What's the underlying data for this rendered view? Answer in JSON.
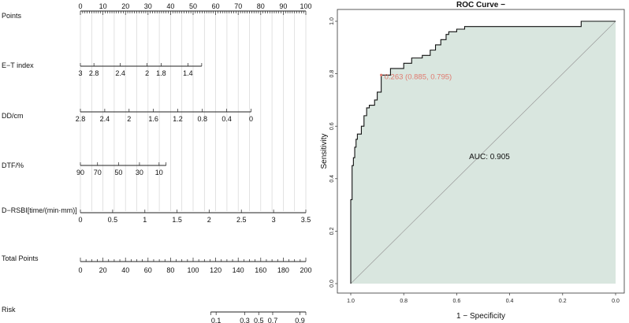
{
  "chart_data": [
    {
      "type": "nomogram",
      "rows": [
        {
          "label": "Points",
          "ticks": [
            {
              "v": 0,
              "t": "0"
            },
            {
              "v": 10,
              "t": "10"
            },
            {
              "v": 20,
              "t": "20"
            },
            {
              "v": 30,
              "t": "30"
            },
            {
              "v": 40,
              "t": "40"
            },
            {
              "v": 50,
              "t": "50"
            },
            {
              "v": 60,
              "t": "60"
            },
            {
              "v": 70,
              "t": "70"
            },
            {
              "v": 80,
              "t": "80"
            },
            {
              "v": 90,
              "t": "90"
            },
            {
              "v": 100,
              "t": "100"
            }
          ]
        },
        {
          "label": "E−T index",
          "ticks": [
            {
              "v": 0,
              "t": "3"
            },
            {
              "v": 6,
              "t": "2.8"
            },
            {
              "v": 17.7,
              "t": "2.4"
            },
            {
              "v": 29.6,
              "t": "2"
            },
            {
              "v": 35.8,
              "t": "1.8"
            },
            {
              "v": 47.7,
              "t": "1.4"
            },
            {
              "v": 53.8,
              "t": ""
            }
          ]
        },
        {
          "label": "DD/cm",
          "ticks": [
            {
              "v": 0,
              "t": "2.8"
            },
            {
              "v": 10.8,
              "t": "2.4"
            },
            {
              "v": 21.6,
              "t": "2"
            },
            {
              "v": 32.4,
              "t": "1.6"
            },
            {
              "v": 43.2,
              "t": "1.2"
            },
            {
              "v": 54.1,
              "t": "0.8"
            },
            {
              "v": 64.9,
              "t": "0.4"
            },
            {
              "v": 75.7,
              "t": "0"
            }
          ]
        },
        {
          "label": "DTF/%",
          "ticks": [
            {
              "v": 0,
              "t": "90"
            },
            {
              "v": 7.6,
              "t": "70"
            },
            {
              "v": 16.9,
              "t": "50"
            },
            {
              "v": 26.2,
              "t": "30"
            },
            {
              "v": 34.9,
              "t": "10"
            },
            {
              "v": 38,
              "t": ""
            }
          ]
        },
        {
          "label": "D−RSBI[time/(min·mm)]",
          "ticks": [
            {
              "v": 0,
              "t": "0"
            },
            {
              "v": 14.3,
              "t": "0.5"
            },
            {
              "v": 28.6,
              "t": "1"
            },
            {
              "v": 42.9,
              "t": "1.5"
            },
            {
              "v": 57.1,
              "t": "2"
            },
            {
              "v": 71.4,
              "t": "2.5"
            },
            {
              "v": 85.7,
              "t": "3"
            },
            {
              "v": 100,
              "t": "3.5"
            }
          ]
        },
        {
          "label": "Total Points",
          "ticks": [
            {
              "v": 0,
              "t": "0"
            },
            {
              "v": 20,
              "t": "20"
            },
            {
              "v": 40,
              "t": "40"
            },
            {
              "v": 60,
              "t": "60"
            },
            {
              "v": 80,
              "t": "80"
            },
            {
              "v": 100,
              "t": "100"
            },
            {
              "v": 120,
              "t": "120"
            },
            {
              "v": 140,
              "t": "140"
            },
            {
              "v": 160,
              "t": "160"
            },
            {
              "v": 180,
              "t": "180"
            },
            {
              "v": 200,
              "t": "200"
            }
          ]
        },
        {
          "label": "Risk",
          "ticks": [
            {
              "v": 60.2,
              "t": "0.1"
            },
            {
              "v": 72.9,
              "t": "0.3"
            },
            {
              "v": 79.1,
              "t": "0.5"
            },
            {
              "v": 85.3,
              "t": "0.7"
            },
            {
              "v": 97.4,
              "t": "0.9"
            }
          ]
        }
      ]
    },
    {
      "type": "line",
      "title": "ROC Curve −",
      "xlabel": "1 − Specificity",
      "ylabel": "Sensitivity",
      "xlim": [
        1.0,
        0.0
      ],
      "ylim": [
        0.0,
        1.0
      ],
      "xticks": [
        "1.0",
        "0.8",
        "0.6",
        "0.4",
        "0.2",
        "0.0"
      ],
      "yticks": [
        "0.0",
        "0.2",
        "0.4",
        "0.6",
        "0.8",
        "1.0"
      ],
      "auc_label": "AUC: 0.905",
      "threshold_label": "0.263 (0.885, 0.795)",
      "threshold_point": {
        "specificity": 0.885,
        "sensitivity": 0.795
      },
      "series": [
        {
          "name": "ROC",
          "specificity": [
            1.0,
            1.0,
            0.995,
            0.995,
            0.99,
            0.99,
            0.985,
            0.985,
            0.98,
            0.98,
            0.975,
            0.975,
            0.96,
            0.96,
            0.95,
            0.95,
            0.94,
            0.94,
            0.93,
            0.93,
            0.91,
            0.91,
            0.9,
            0.9,
            0.885,
            0.885,
            0.85,
            0.85,
            0.8,
            0.8,
            0.77,
            0.77,
            0.73,
            0.73,
            0.7,
            0.7,
            0.68,
            0.68,
            0.66,
            0.66,
            0.64,
            0.64,
            0.63,
            0.63,
            0.6,
            0.6,
            0.57,
            0.57,
            0.13,
            0.13,
            0.0
          ],
          "sensitivity": [
            0.0,
            0.32,
            0.32,
            0.45,
            0.45,
            0.48,
            0.48,
            0.52,
            0.52,
            0.55,
            0.55,
            0.57,
            0.57,
            0.6,
            0.6,
            0.64,
            0.64,
            0.67,
            0.67,
            0.68,
            0.68,
            0.7,
            0.7,
            0.73,
            0.73,
            0.795,
            0.795,
            0.82,
            0.82,
            0.84,
            0.84,
            0.86,
            0.86,
            0.87,
            0.87,
            0.89,
            0.89,
            0.91,
            0.91,
            0.93,
            0.93,
            0.95,
            0.95,
            0.96,
            0.96,
            0.97,
            0.97,
            0.98,
            0.98,
            1.0,
            1.0
          ]
        }
      ]
    }
  ]
}
